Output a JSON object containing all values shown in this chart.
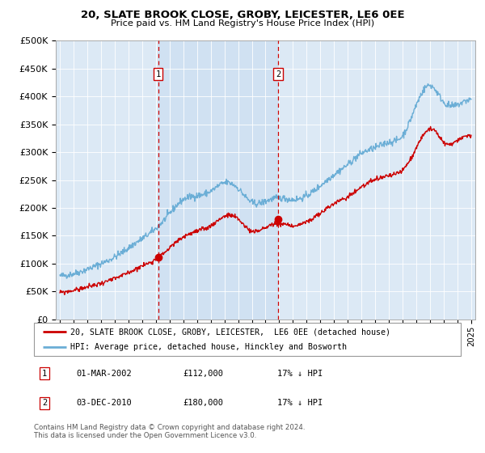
{
  "title": "20, SLATE BROOK CLOSE, GROBY, LEICESTER, LE6 0EE",
  "subtitle": "Price paid vs. HM Land Registry's House Price Index (HPI)",
  "background_color": "#dce9f5",
  "plot_bg_color": "#dce9f5",
  "shade_color": "#c8ddf0",
  "sale1_date_num": 2002.17,
  "sale2_date_num": 2010.92,
  "sale1_price": 112000,
  "sale2_price": 180000,
  "ylim": [
    0,
    500000
  ],
  "xlim_start": 1994.7,
  "xlim_end": 2025.3,
  "ylabel_ticks": [
    0,
    50000,
    100000,
    150000,
    200000,
    250000,
    300000,
    350000,
    400000,
    450000,
    500000
  ],
  "ylabel_labels": [
    "£0",
    "£50K",
    "£100K",
    "£150K",
    "£200K",
    "£250K",
    "£300K",
    "£350K",
    "£400K",
    "£450K",
    "£500K"
  ],
  "xtick_years": [
    1995,
    1996,
    1997,
    1998,
    1999,
    2000,
    2001,
    2002,
    2003,
    2004,
    2005,
    2006,
    2007,
    2008,
    2009,
    2010,
    2011,
    2012,
    2013,
    2014,
    2015,
    2016,
    2017,
    2018,
    2019,
    2020,
    2021,
    2022,
    2023,
    2024,
    2025
  ],
  "hpi_color": "#6baed6",
  "sale_color": "#cc0000",
  "vline_color": "#cc0000",
  "legend_label_sale": "20, SLATE BROOK CLOSE, GROBY, LEICESTER,  LE6 0EE (detached house)",
  "legend_label_hpi": "HPI: Average price, detached house, Hinckley and Bosworth",
  "footnote": "Contains HM Land Registry data © Crown copyright and database right 2024.\nThis data is licensed under the Open Government Licence v3.0.",
  "table_rows": [
    {
      "num": "1",
      "date": "01-MAR-2002",
      "price": "£112,000",
      "hpi": "17% ↓ HPI"
    },
    {
      "num": "2",
      "date": "03-DEC-2010",
      "price": "£180,000",
      "hpi": "17% ↓ HPI"
    }
  ],
  "hpi_anchors_x": [
    1995,
    1996,
    1997,
    1998,
    1999,
    2000,
    2001,
    2002,
    2003,
    2004,
    2005,
    2006,
    2007,
    2008,
    2009,
    2010,
    2011,
    2012,
    2013,
    2014,
    2015,
    2016,
    2017,
    2018,
    2019,
    2020,
    2021,
    2022,
    2023,
    2024,
    2025
  ],
  "hpi_anchors_y": [
    78000,
    82000,
    90000,
    100000,
    112000,
    128000,
    145000,
    163000,
    190000,
    215000,
    222000,
    230000,
    245000,
    235000,
    210000,
    212000,
    218000,
    215000,
    222000,
    240000,
    260000,
    278000,
    298000,
    308000,
    318000,
    330000,
    385000,
    420000,
    390000,
    385000,
    395000
  ],
  "sale_anchors_x": [
    1995,
    1996,
    1997,
    1998,
    1999,
    2000,
    2001,
    2002,
    2003,
    2004,
    2005,
    2006,
    2007,
    2008,
    2009,
    2010,
    2011,
    2012,
    2013,
    2014,
    2015,
    2016,
    2017,
    2018,
    2019,
    2020,
    2021,
    2022,
    2023,
    2024,
    2025
  ],
  "sale_anchors_y": [
    48000,
    52000,
    58000,
    65000,
    73000,
    84000,
    96000,
    108000,
    128000,
    148000,
    158000,
    168000,
    185000,
    180000,
    158000,
    165000,
    172000,
    168000,
    175000,
    190000,
    208000,
    220000,
    238000,
    250000,
    258000,
    268000,
    308000,
    342000,
    318000,
    320000,
    330000
  ]
}
